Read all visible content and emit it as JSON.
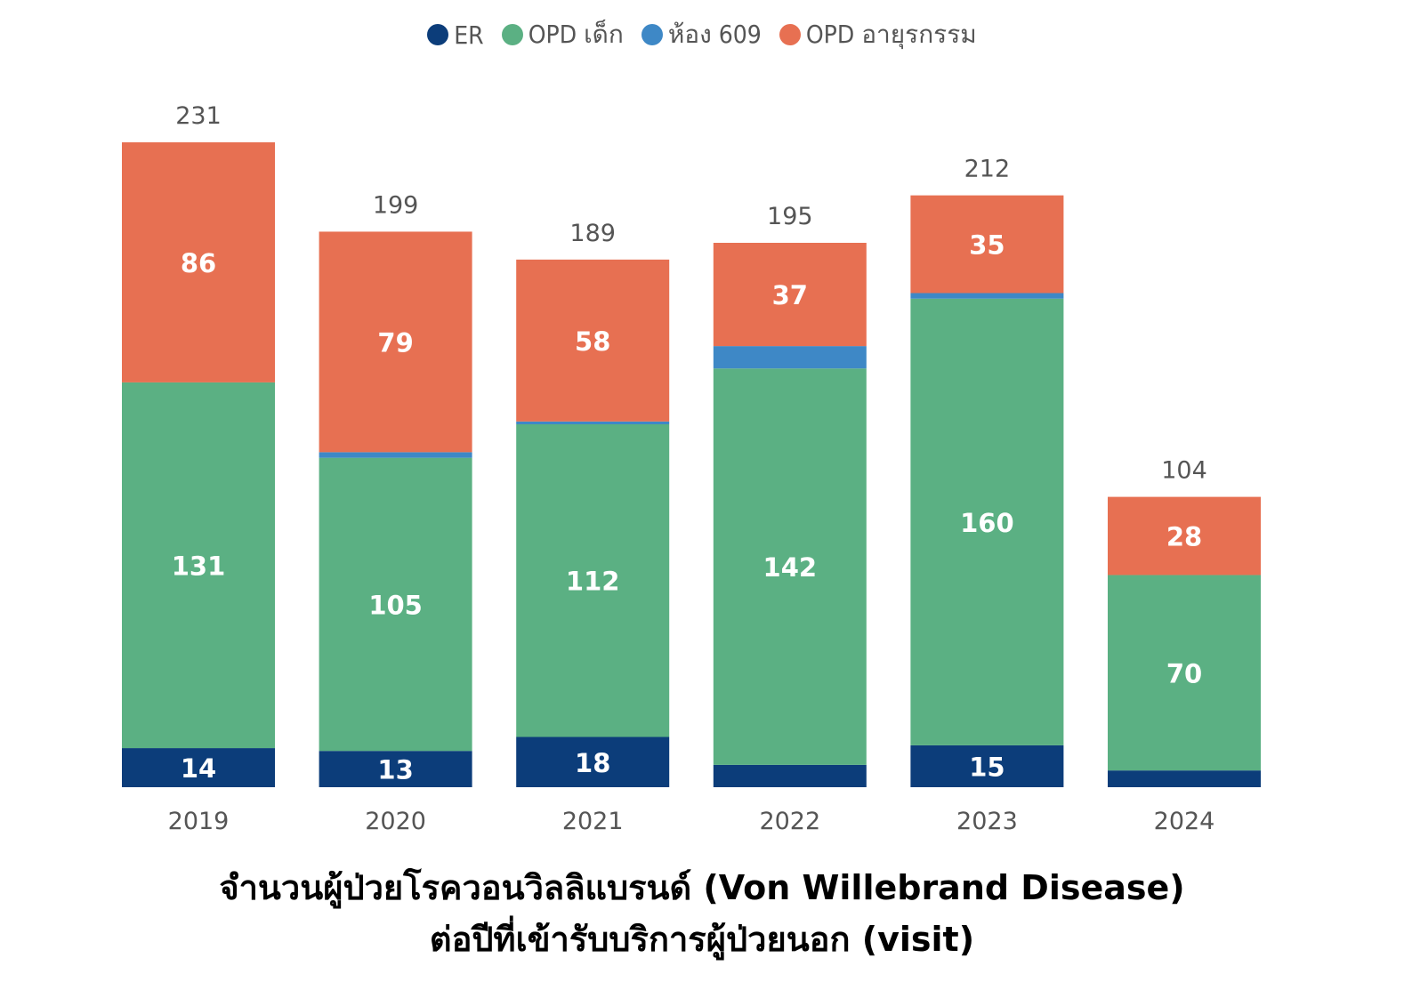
{
  "chart_data": {
    "type": "bar",
    "stacked": true,
    "categories": [
      "2019",
      "2020",
      "2021",
      "2022",
      "2023",
      "2024"
    ],
    "series": [
      {
        "name": "ER",
        "color": "#0c3d7a",
        "values": [
          14,
          13,
          18,
          8,
          15,
          6
        ],
        "labels": [
          "14",
          "13",
          "18",
          "",
          "15",
          ""
        ]
      },
      {
        "name": "OPD เด็ก",
        "color": "#5bb083",
        "values": [
          131,
          105,
          112,
          142,
          160,
          70
        ],
        "labels": [
          "131",
          "105",
          "112",
          "142",
          "160",
          "70"
        ]
      },
      {
        "name": "ห้อง 609",
        "color": "#3e88c6",
        "values": [
          0,
          2,
          1,
          8,
          2,
          0
        ],
        "labels": [
          "",
          "",
          "",
          "",
          "",
          ""
        ]
      },
      {
        "name": "OPD อายุรกรรม",
        "color": "#e77052",
        "values": [
          86,
          79,
          58,
          37,
          35,
          28
        ],
        "labels": [
          "86",
          "79",
          "58",
          "37",
          "35",
          "28"
        ]
      }
    ],
    "totals": [
      "231",
      "199",
      "189",
      "195",
      "212",
      "104"
    ],
    "ylim": [
      0,
      231
    ],
    "legend_position": "top-center",
    "grid": false
  },
  "caption": {
    "line1": "จำนวนผู้ป่วยโรควอนวิลลิแบรนด์ (Von Willebrand Disease)",
    "line2": "ต่อปีที่เข้ารับบริการผู้ป่วยนอก (visit)"
  }
}
